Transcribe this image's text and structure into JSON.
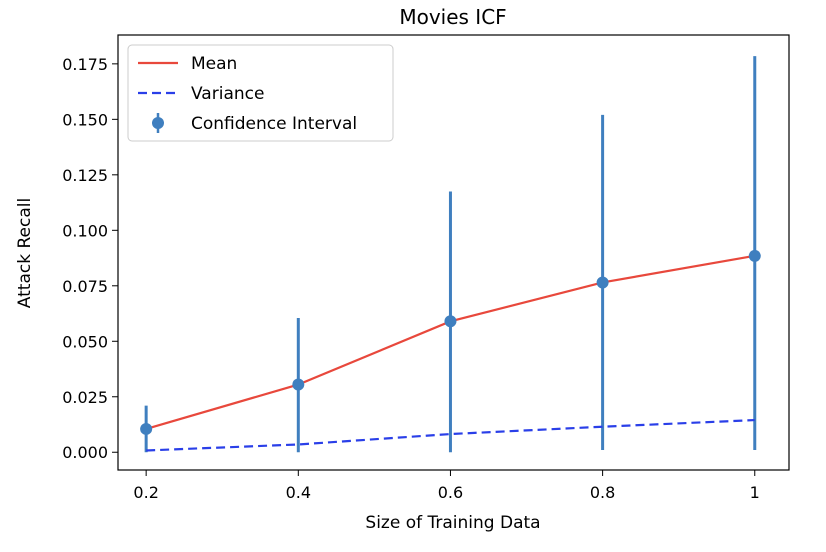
{
  "chart_data": {
    "type": "line",
    "title": "Movies ICF",
    "xlabel": "Size of Training Data",
    "ylabel": "Attack Recall",
    "x": [
      0.2,
      0.4,
      0.6,
      0.8,
      1.0
    ],
    "x_tick_labels": [
      "0.2",
      "0.4",
      "0.6",
      "0.8",
      "1"
    ],
    "y_ticks": [
      0.0,
      0.025,
      0.05,
      0.075,
      0.1,
      0.125,
      0.15,
      0.175
    ],
    "y_tick_labels": [
      "0.000",
      "0.025",
      "0.050",
      "0.075",
      "0.100",
      "0.125",
      "0.150",
      "0.175"
    ],
    "xlim": [
      0.163,
      1.045
    ],
    "ylim": [
      -0.008,
      0.188
    ],
    "grid": false,
    "legend_position": "top-left",
    "series": [
      {
        "name": "Mean",
        "type": "line",
        "values": [
          0.0105,
          0.0305,
          0.059,
          0.0765,
          0.0885
        ],
        "color": "#e8483c",
        "dash": "solid"
      },
      {
        "name": "Variance",
        "type": "line",
        "values": [
          0.0008,
          0.0035,
          0.0082,
          0.0115,
          0.0145
        ],
        "color": "#2a3fe8",
        "dash": "dashed"
      },
      {
        "name": "Confidence Interval",
        "type": "errorbar",
        "values": [
          0.0105,
          0.0305,
          0.059,
          0.0765,
          0.0885
        ],
        "lower": [
          0.0,
          0.0,
          0.0,
          0.001,
          0.001
        ],
        "upper": [
          0.021,
          0.0605,
          0.1175,
          0.152,
          0.1785
        ],
        "color": "#3f7fbf"
      }
    ]
  }
}
